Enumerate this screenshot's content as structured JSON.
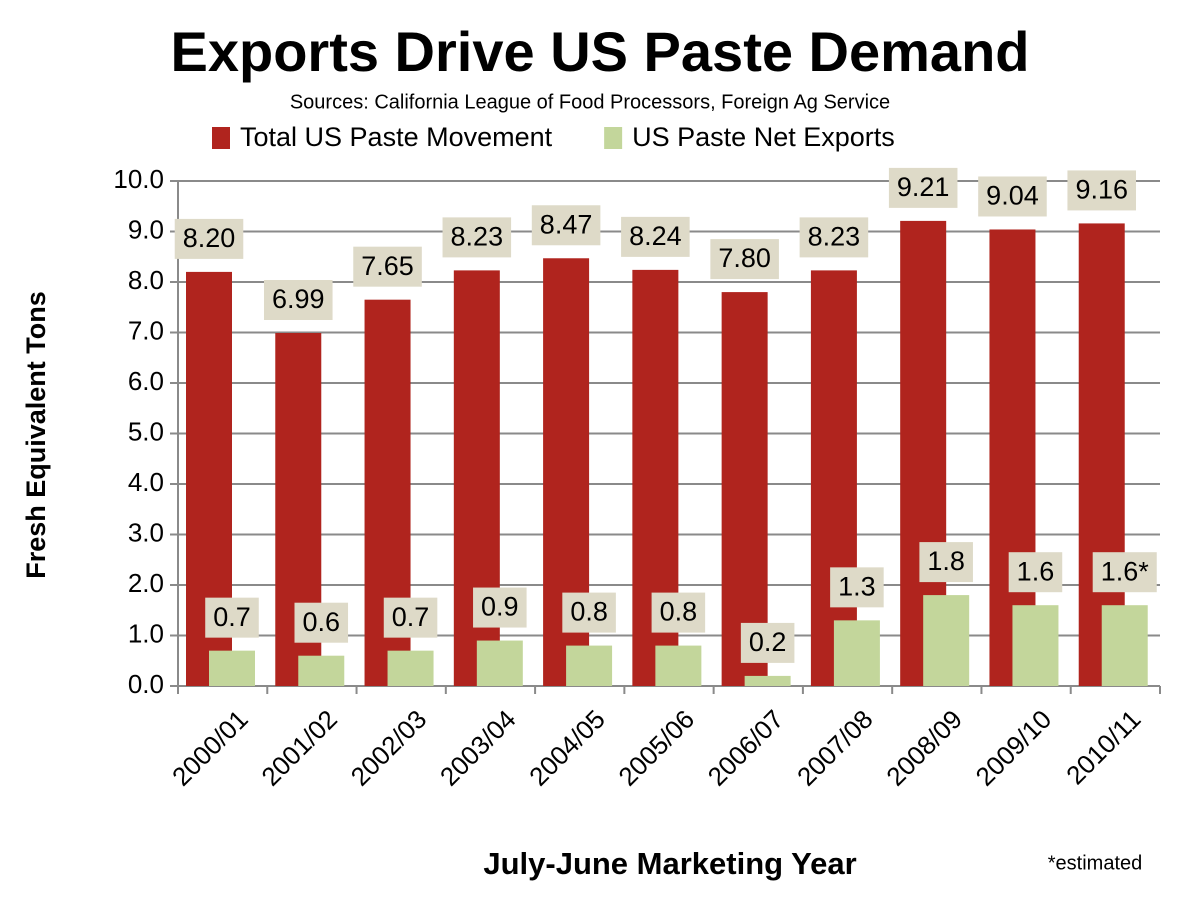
{
  "chart_data": {
    "type": "bar",
    "title": "Exports Drive US Paste Demand",
    "subtitle": "Sources: California League of Food Processors, Foreign Ag Service",
    "x_label": "July-June Marketing Year",
    "y_label": "Fresh Equivalent Tons",
    "note": "*estimated",
    "categories": [
      "2000/01",
      "2001/02",
      "2002/03",
      "2003/04",
      "2004/05",
      "2005/06",
      "2006/07",
      "2007/08",
      "2008/09",
      "2009/10",
      "2010/11"
    ],
    "series": [
      {
        "name": "Total US Paste Movement",
        "color": "#b0241e",
        "values": [
          8.2,
          6.99,
          7.65,
          8.23,
          8.47,
          8.24,
          7.8,
          8.23,
          9.21,
          9.04,
          9.16
        ],
        "value_labels": [
          "8.20",
          "6.99",
          "7.65",
          "8.23",
          "8.47",
          "8.24",
          "7.80",
          "8.23",
          "9.21",
          "9.04",
          "9.16"
        ]
      },
      {
        "name": "US Paste Net Exports",
        "color": "#c3d69b",
        "values": [
          0.7,
          0.6,
          0.7,
          0.9,
          0.8,
          0.8,
          0.2,
          1.3,
          1.8,
          1.6,
          1.6
        ],
        "value_labels": [
          "0.7",
          "0.6",
          "0.7",
          "0.9",
          "0.8",
          "0.8",
          "0.2",
          "1.3",
          "1.8",
          "1.6",
          "1.6*"
        ]
      }
    ],
    "ylim": [
      0,
      10
    ],
    "yticks": [
      {
        "value": 0,
        "label": "0.0"
      },
      {
        "value": 1,
        "label": "1.0"
      },
      {
        "value": 2,
        "label": "2.0"
      },
      {
        "value": 3,
        "label": "3.0"
      },
      {
        "value": 4,
        "label": "4.0"
      },
      {
        "value": 5,
        "label": "5.0"
      },
      {
        "value": 6,
        "label": "6.0"
      },
      {
        "value": 7,
        "label": "7.0"
      },
      {
        "value": 8,
        "label": "8.0"
      },
      {
        "value": 9,
        "label": "9.0"
      },
      {
        "value": 10,
        "label": "10.0"
      }
    ],
    "grid": true,
    "label_box_color": "#dedac8"
  }
}
